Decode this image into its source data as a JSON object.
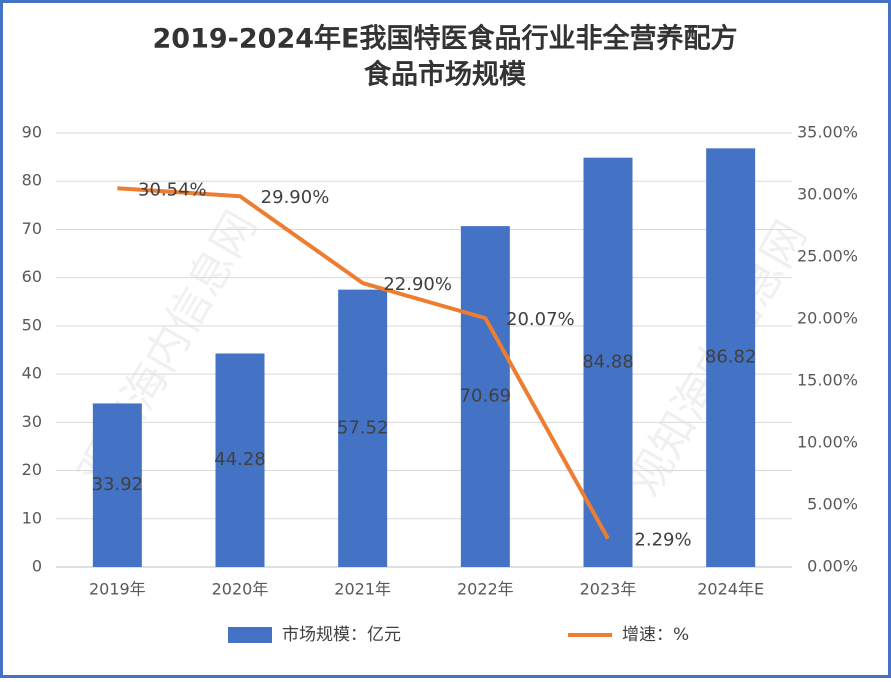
{
  "chart_data": {
    "type": "bar",
    "title": [
      "2019-2024年E我国特医食品行业非全营养配方",
      "食品市场规模"
    ],
    "watermark": "观知海内信息网",
    "categories": [
      "2019年",
      "2020年",
      "2021年",
      "2022年",
      "2023年",
      "2024年E"
    ],
    "series": [
      {
        "name": "市场规模：亿元",
        "type": "bar",
        "color": "#4472c4",
        "values": [
          33.92,
          44.28,
          57.52,
          70.69,
          84.88,
          86.82
        ]
      },
      {
        "name": "增速：%",
        "type": "line",
        "axis": "y2",
        "color": "#ed7d31",
        "values": [
          30.54,
          29.9,
          22.9,
          20.07,
          2.29,
          null
        ],
        "value_labels": [
          "30.54%",
          "29.90%",
          "22.90%",
          "20.07%",
          "2.29%",
          null
        ]
      }
    ],
    "ylim": [
      0,
      90
    ],
    "yticks": [
      0,
      10,
      20,
      30,
      40,
      50,
      60,
      70,
      80,
      90
    ],
    "y2lim": [
      0,
      35
    ],
    "y2ticks": [
      {
        "value": 0,
        "label": "0.00%"
      },
      {
        "value": 5,
        "label": "5.00%"
      },
      {
        "value": 10,
        "label": "10.00%"
      },
      {
        "value": 15,
        "label": "15.00%"
      },
      {
        "value": 20,
        "label": "20.00%"
      },
      {
        "value": 25,
        "label": "25.00%"
      },
      {
        "value": 30,
        "label": "30.00%"
      },
      {
        "value": 35,
        "label": "35.00%"
      }
    ],
    "grid": true,
    "legend": "bottom"
  }
}
